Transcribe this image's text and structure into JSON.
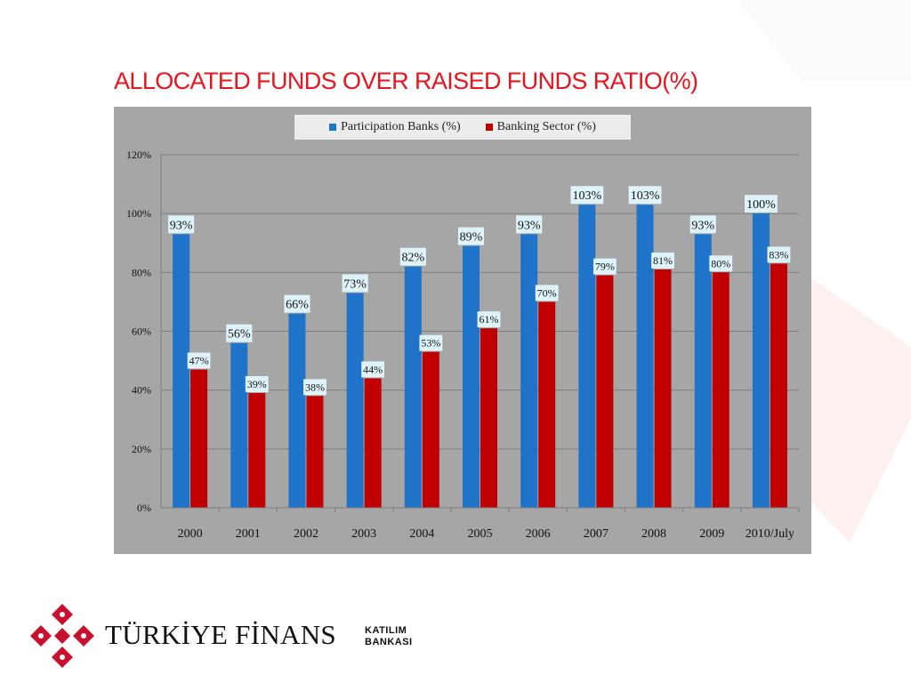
{
  "page": {
    "title": "ALLOCATED FUNDS OVER RAISED FUNDS RATIO(%)"
  },
  "logo": {
    "name": "TÜRKİYE FİNANS",
    "sub_line1": "KATILIM",
    "sub_line2": "BANKASI",
    "icon": "turkiye-finans-flower-logo-icon"
  },
  "colors": {
    "title": "#e8141e",
    "participation": "#1f74c9",
    "sector": "#c00000",
    "plot_bg": "#a6a6a6"
  },
  "chart_data": {
    "type": "bar",
    "title": "ALLOCATED FUNDS OVER RAISED FUNDS RATIO(%)",
    "categories": [
      "2000",
      "2001",
      "2002",
      "2003",
      "2004",
      "2005",
      "2006",
      "2007",
      "2008",
      "2009",
      "2010/July"
    ],
    "series": [
      {
        "name": "Participation Banks (%)",
        "color": "#1f74c9",
        "values": [
          93,
          56,
          66,
          73,
          82,
          89,
          93,
          103,
          103,
          93,
          100
        ],
        "labels": [
          "93%",
          "56%",
          "66%",
          "73%",
          "82%",
          "89%",
          "93%",
          "103%",
          "103%",
          "93%",
          "100%"
        ]
      },
      {
        "name": "Banking Sector (%)",
        "color": "#c00000",
        "values": [
          47,
          39,
          38,
          44,
          53,
          61,
          70,
          79,
          81,
          80,
          83
        ],
        "labels": [
          "47%",
          "39%",
          "38%",
          "44%",
          "53%",
          "61%",
          "70%",
          "79%",
          "81%",
          "80%",
          "83%"
        ]
      }
    ],
    "yticks": [
      "0%",
      "20%",
      "40%",
      "60%",
      "80%",
      "100%",
      "120%"
    ],
    "ytick_values": [
      0,
      20,
      40,
      60,
      80,
      100,
      120
    ],
    "ylim": [
      0,
      120
    ],
    "xlabel": "",
    "ylabel": "",
    "grid": true,
    "legend_position": "top"
  }
}
